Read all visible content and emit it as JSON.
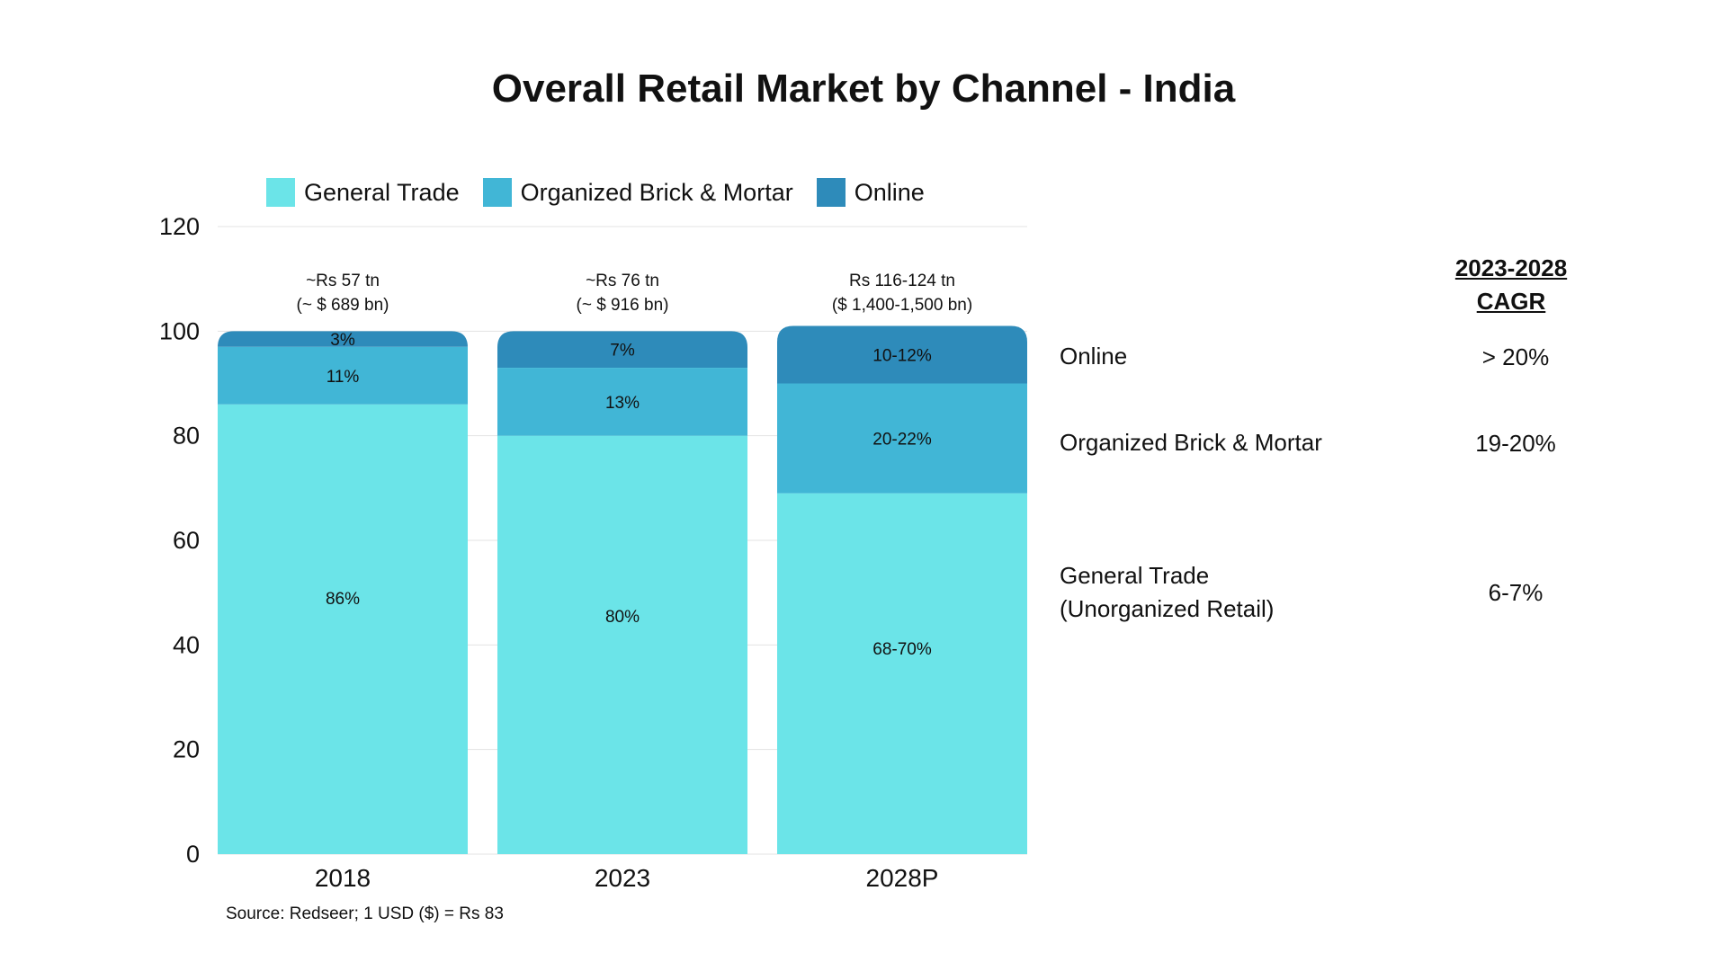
{
  "chart_data": {
    "type": "bar",
    "stacked": true,
    "title": "Overall Retail Market by Channel - India",
    "categories": [
      "2018",
      "2023",
      "2028P"
    ],
    "ylim": [
      0,
      120
    ],
    "yticks": [
      "0",
      "20",
      "40",
      "60",
      "80",
      "100",
      "120"
    ],
    "grid": true,
    "legend_position": "top",
    "series": [
      {
        "name": "General Trade",
        "color": "#6BE4E8",
        "values": [
          86,
          80,
          69
        ],
        "labels": [
          "86%",
          "80%",
          "68-70%"
        ]
      },
      {
        "name": "Organized Brick & Mortar",
        "color": "#41B6D6",
        "values": [
          11,
          13,
          21
        ],
        "labels": [
          "11%",
          "13%",
          "20-22%"
        ]
      },
      {
        "name": "Online",
        "color": "#2E8BBA",
        "values": [
          3,
          7,
          11
        ],
        "labels": [
          "3%",
          "7%",
          "10-12%"
        ]
      }
    ],
    "totals": [
      {
        "line1": "~Rs 57 tn",
        "line2": "(~ $ 689 bn)"
      },
      {
        "line1": "~Rs 76 tn",
        "line2": "(~ $ 916 bn)"
      },
      {
        "line1": "Rs 116-124 tn",
        "line2": "($ 1,400-1,500 bn)"
      }
    ],
    "source": "Source: Redseer; 1 USD ($) = Rs 83"
  },
  "cagr": {
    "heading_line1": "2023-2028",
    "heading_line2": "CAGR",
    "rows": [
      {
        "label": "Online",
        "label2": "",
        "value": "> 20%"
      },
      {
        "label": "Organized Brick & Mortar",
        "label2": "",
        "value": "19-20%"
      },
      {
        "label": "General Trade",
        "label2": "(Unorganized Retail)",
        "value": "6-7%"
      }
    ]
  }
}
